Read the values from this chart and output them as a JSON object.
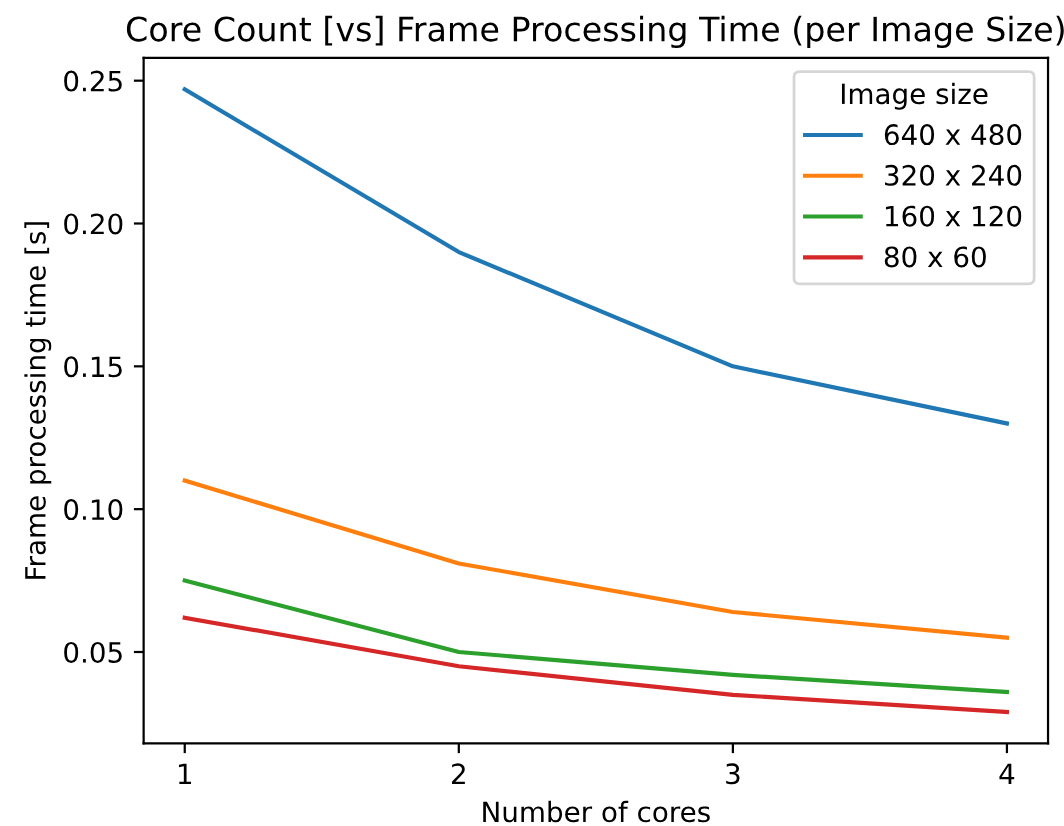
{
  "chart_data": {
    "type": "line",
    "title": "Core Count [vs] Frame Processing Time (per Image Size)",
    "xlabel": "Number of cores",
    "ylabel": "Frame processing time [s]",
    "legend_title": "Image size",
    "x": [
      1,
      2,
      3,
      4
    ],
    "series": [
      {
        "name": "640 x 480",
        "color": "#1f77b4",
        "values": [
          0.247,
          0.19,
          0.15,
          0.13
        ]
      },
      {
        "name": "320 x 240",
        "color": "#ff7f0e",
        "values": [
          0.11,
          0.081,
          0.064,
          0.055
        ]
      },
      {
        "name": "160 x 120",
        "color": "#2ca02c",
        "values": [
          0.075,
          0.05,
          0.042,
          0.036
        ]
      },
      {
        "name": "80 x 60",
        "color": "#d62728",
        "values": [
          0.062,
          0.045,
          0.035,
          0.029
        ]
      }
    ],
    "xlim": [
      0.85,
      4.15
    ],
    "ylim": [
      0.018,
      0.258
    ],
    "xticks": [
      1,
      2,
      3,
      4
    ],
    "yticks": [
      {
        "value": 0.05,
        "label": "0.05"
      },
      {
        "value": 0.1,
        "label": "0.10"
      },
      {
        "value": 0.15,
        "label": "0.15"
      },
      {
        "value": 0.2,
        "label": "0.20"
      },
      {
        "value": 0.25,
        "label": "0.25"
      }
    ],
    "legend": "top right",
    "grid": false
  }
}
